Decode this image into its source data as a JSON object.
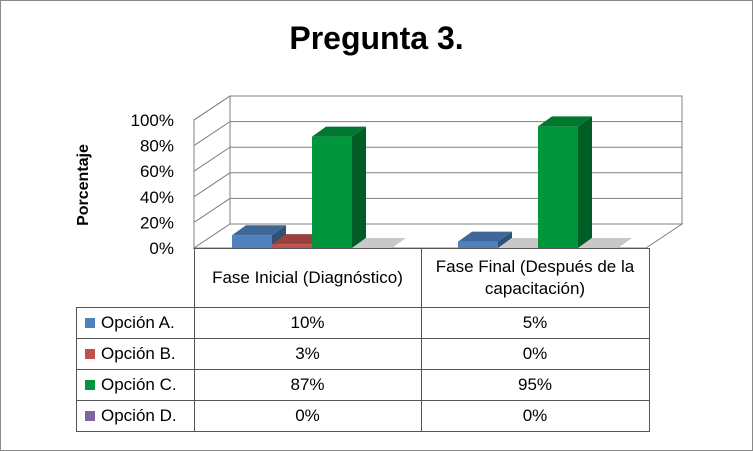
{
  "chart_data": {
    "type": "bar",
    "title": "Pregunta 3.",
    "ylabel": "Porcentaje",
    "xlabel": "",
    "ylim": [
      0,
      100
    ],
    "yticks": [
      "0%",
      "20%",
      "40%",
      "60%",
      "80%",
      "100%"
    ],
    "categories": [
      "Fase Inicial (Diagnóstico)",
      "Fase Final (Después de la capacitación)"
    ],
    "series": [
      {
        "name": "Opción A.",
        "color": "#4f81bd",
        "values": [
          10,
          5
        ],
        "labels": [
          "10%",
          "5%"
        ]
      },
      {
        "name": "Opción B.",
        "color": "#c0504d",
        "values": [
          3,
          0
        ],
        "labels": [
          "3%",
          "0%"
        ]
      },
      {
        "name": "Opción C.",
        "color": "#00963c",
        "values": [
          87,
          95
        ],
        "labels": [
          "87%",
          "95%"
        ]
      },
      {
        "name": "Opción D.",
        "color": "#8064a2",
        "values": [
          0,
          0
        ],
        "labels": [
          "0%",
          "0%"
        ]
      }
    ],
    "style": "3d-clustered-column",
    "grid": true,
    "legend": "data-table"
  }
}
